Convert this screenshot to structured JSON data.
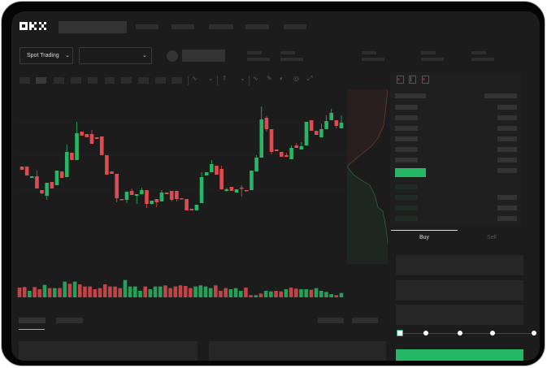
{
  "header": {
    "logo": "OKX"
  },
  "market": {
    "trading_mode": "Spot Trading"
  },
  "trade_panel": {
    "tabs": [
      "Buy",
      "Sell"
    ],
    "active_tab": "Buy",
    "slider_percent": 0
  },
  "colors": {
    "up": "#25b864",
    "down": "#e04b4f",
    "background": "#1c1c1c",
    "accent": "#25b864"
  },
  "icons": [
    "chevron-down-icon",
    "line-chart-icon",
    "pencil-icon",
    "gauge-icon",
    "target-icon",
    "expand-icon",
    "orderbook-both-icon",
    "orderbook-bids-icon",
    "orderbook-asks-icon"
  ],
  "chart_data": {
    "type": "candlestick",
    "candles": [
      [
        97,
        93,
        97,
        93
      ],
      [
        97,
        86,
        97,
        86
      ],
      [
        83,
        85,
        85,
        83
      ],
      [
        85,
        70,
        92,
        70
      ],
      [
        68,
        64,
        68,
        63
      ],
      [
        61,
        77,
        77,
        56
      ],
      [
        78,
        70,
        78,
        70
      ],
      [
        74,
        92,
        92,
        74
      ],
      [
        91,
        83,
        91,
        83
      ],
      [
        84,
        115,
        124,
        84
      ],
      [
        114,
        105,
        114,
        105
      ],
      [
        105,
        138,
        152,
        105
      ],
      [
        140,
        135,
        140,
        135
      ],
      [
        137,
        133,
        137,
        133
      ],
      [
        137,
        125,
        142,
        125
      ],
      [
        133,
        131,
        133,
        131
      ],
      [
        134,
        111,
        134,
        111
      ],
      [
        111,
        87,
        111,
        87
      ],
      [
        91,
        88,
        91,
        88
      ],
      [
        88,
        58,
        88,
        53
      ],
      [
        57,
        56,
        57,
        56
      ],
      [
        56,
        66,
        66,
        52
      ],
      [
        67,
        62,
        70,
        62
      ],
      [
        61,
        63,
        63,
        51
      ],
      [
        63,
        68,
        71,
        63
      ],
      [
        68,
        51,
        68,
        46
      ],
      [
        51,
        55,
        55,
        50
      ],
      [
        57,
        53,
        57,
        47
      ],
      [
        54,
        65,
        68,
        54
      ],
      [
        65,
        63,
        65,
        63
      ],
      [
        67,
        56,
        67,
        54
      ],
      [
        67,
        57,
        67,
        54
      ],
      [
        58,
        57,
        58,
        57
      ],
      [
        57,
        43,
        57,
        43
      ],
      [
        45,
        43,
        45,
        43
      ],
      [
        43,
        50,
        50,
        43
      ],
      [
        52,
        84,
        90,
        52
      ],
      [
        86,
        90,
        90,
        86
      ],
      [
        90,
        100,
        105,
        90
      ],
      [
        98,
        87,
        98,
        87
      ],
      [
        94,
        69,
        98,
        69
      ],
      [
        67,
        69,
        71,
        66
      ],
      [
        72,
        67,
        72,
        67
      ],
      [
        65,
        69,
        69,
        65
      ],
      [
        71,
        70,
        74,
        60
      ],
      [
        68,
        67,
        68,
        67
      ],
      [
        68,
        92,
        92,
        68
      ],
      [
        91,
        108,
        111,
        91
      ],
      [
        108,
        155,
        171,
        108
      ],
      [
        157,
        143,
        159,
        140
      ],
      [
        143,
        115,
        143,
        112
      ],
      [
        118,
        116,
        118,
        116
      ],
      [
        115,
        109,
        115,
        109
      ],
      [
        111,
        109,
        114,
        109
      ],
      [
        106,
        120,
        123,
        106
      ],
      [
        123,
        120,
        126,
        120
      ],
      [
        118,
        122,
        127,
        118
      ],
      [
        123,
        152,
        152,
        123
      ],
      [
        154,
        141,
        154,
        141
      ],
      [
        141,
        136,
        141,
        136
      ],
      [
        133,
        143,
        150,
        133
      ],
      [
        143,
        153,
        160,
        143
      ],
      [
        154,
        163,
        168,
        154
      ],
      [
        154,
        147,
        154,
        144
      ],
      [
        144,
        151,
        160,
        144
      ]
    ],
    "volume": [
      36,
      38,
      24,
      38,
      30,
      46,
      34,
      34,
      34,
      58,
      50,
      58,
      48,
      40,
      40,
      30,
      34,
      48,
      40,
      40,
      34,
      64,
      40,
      40,
      24,
      40,
      30,
      40,
      40,
      44,
      34,
      40,
      44,
      42,
      34,
      40,
      44,
      40,
      34,
      44,
      24,
      34,
      30,
      34,
      24,
      36,
      8,
      8,
      14,
      24,
      22,
      24,
      22,
      30,
      36,
      32,
      30,
      30,
      28,
      34,
      24,
      20,
      12,
      8,
      16
    ],
    "volume_up": [
      0,
      0,
      1,
      0,
      0,
      1,
      0,
      1,
      0,
      1,
      0,
      1,
      0,
      0,
      0,
      0,
      0,
      0,
      0,
      0,
      0,
      1,
      1,
      1,
      1,
      0,
      1,
      1,
      1,
      0,
      0,
      0,
      0,
      0,
      0,
      1,
      1,
      1,
      1,
      0,
      0,
      0,
      1,
      1,
      1,
      0,
      0,
      1,
      0,
      1,
      1,
      0,
      0,
      1,
      0,
      0,
      1,
      1,
      0,
      1,
      1,
      1,
      1,
      0,
      1
    ]
  }
}
